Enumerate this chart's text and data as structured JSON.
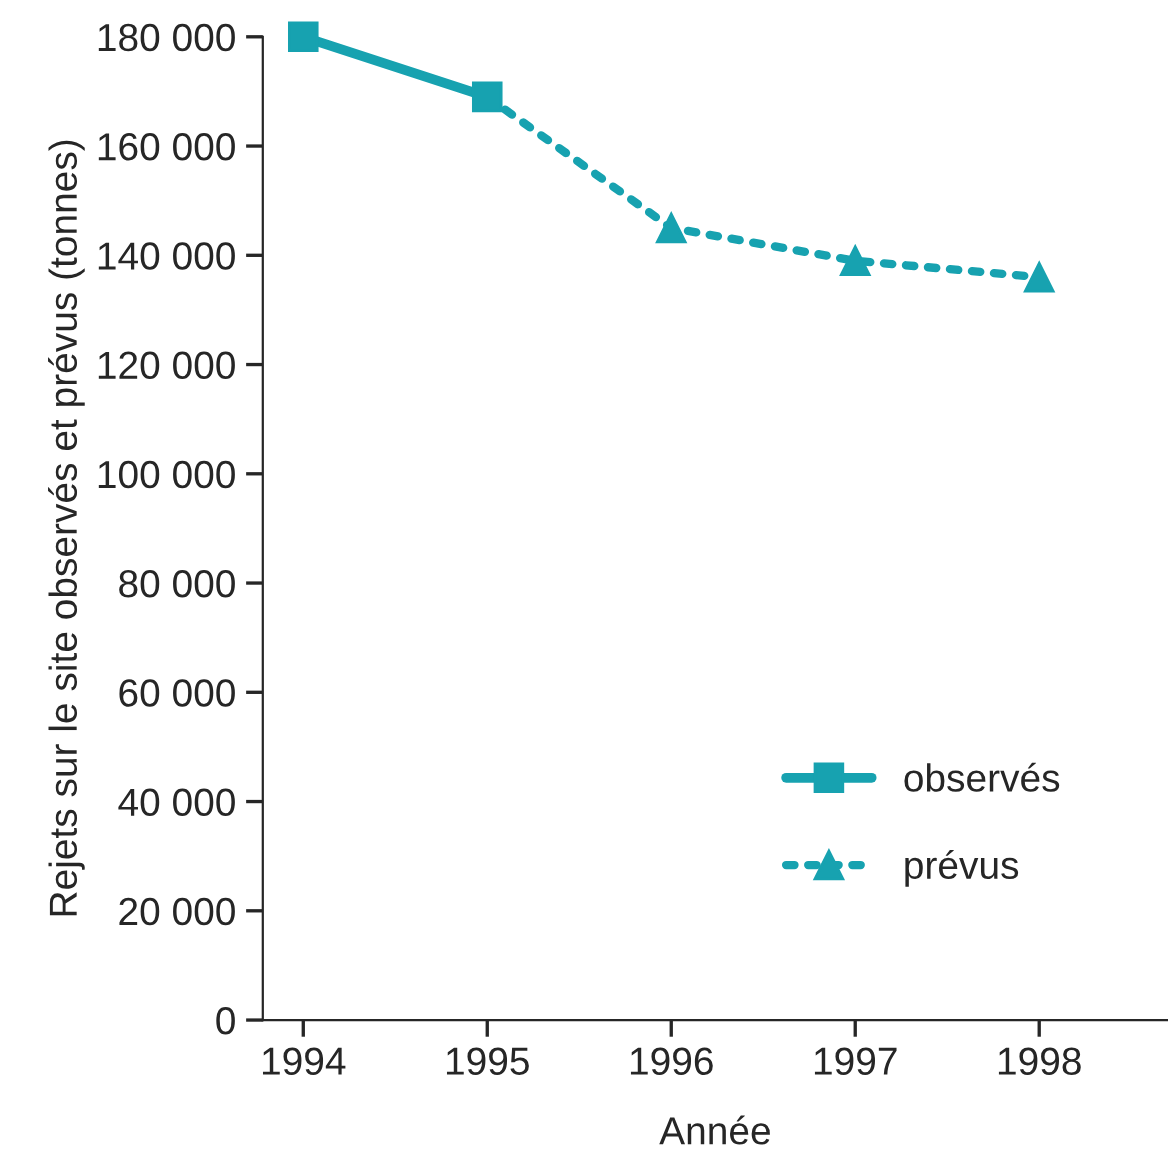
{
  "chart_data": {
    "type": "line",
    "xlabel": "Année",
    "ylabel": "Rejets sur le site observés et prévus (tonnes)",
    "series": [
      {
        "name": "observés",
        "color": "#17a2b0",
        "x": [
          1994,
          1995
        ],
        "values": [
          180000,
          169000
        ],
        "marker": "square",
        "line_style": "solid"
      },
      {
        "name": "prévus",
        "color": "#17a2b0",
        "x": [
          1995,
          1996,
          1997,
          1998
        ],
        "values": [
          169000,
          145000,
          139000,
          136000
        ],
        "marker": "triangle",
        "line_style": "dotted"
      }
    ],
    "xlim": [
      1993.78,
      1998.7
    ],
    "xticks": [
      1994,
      1995,
      1996,
      1997,
      1998
    ],
    "ylim": [
      0,
      180000
    ],
    "yticks": [
      {
        "value": 0,
        "label": "0"
      },
      {
        "value": 20000,
        "label": "20 000"
      },
      {
        "value": 40000,
        "label": "40 000"
      },
      {
        "value": 60000,
        "label": "60 000"
      },
      {
        "value": 80000,
        "label": "80 000"
      },
      {
        "value": 100000,
        "label": "100 000"
      },
      {
        "value": 120000,
        "label": "120 000"
      },
      {
        "value": 140000,
        "label": "140 000"
      },
      {
        "value": 160000,
        "label": "160 000"
      },
      {
        "value": 180000,
        "label": "180 000"
      }
    ],
    "grid": false,
    "legend": "bottom right"
  }
}
